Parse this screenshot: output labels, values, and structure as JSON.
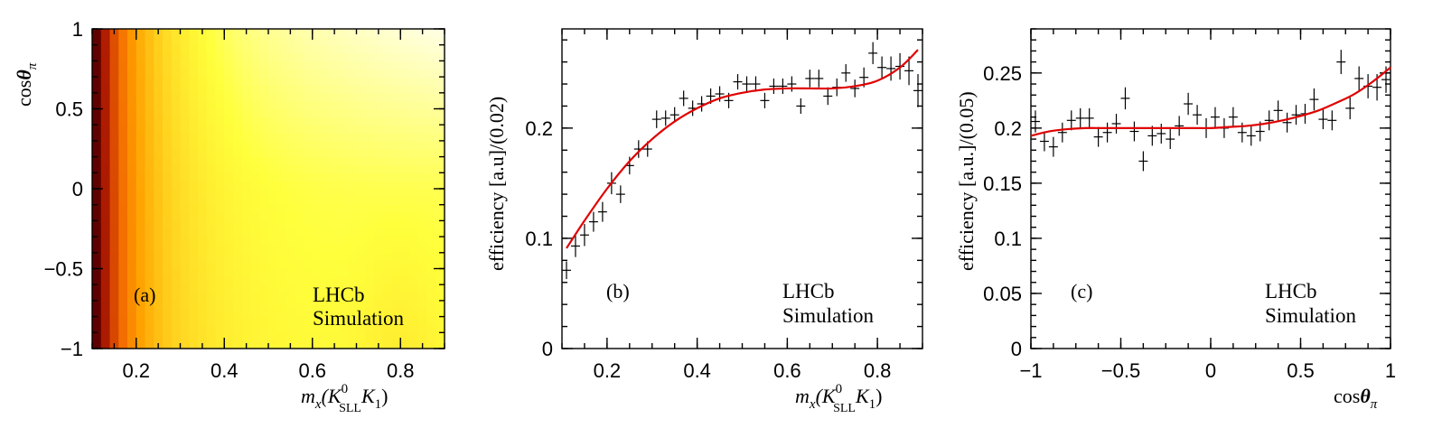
{
  "chart_data": [
    {
      "type": "heatmap",
      "panel": "a",
      "panel_label": "(a)",
      "experiment": "LHCb",
      "sim_label": "Simulation",
      "xlabel_main": "m",
      "xlabel_sub": "x",
      "xlabel_particles": "(K",
      "xlabel_sup": "0",
      "xlabel_sub2": "SLL",
      "xlabel_k": "K",
      "xlabel_k_sub": "1",
      "xlabel_close": ")",
      "ylabel_main": "cos",
      "ylabel_theta": "θ",
      "ylabel_sub": "π",
      "xlim": [
        0.1,
        0.9
      ],
      "ylim": [
        -1,
        1
      ],
      "xticks": [
        0.2,
        0.4,
        0.6,
        0.8
      ],
      "xtick_labels": [
        "0.2",
        "0.4",
        "0.6",
        "0.8"
      ],
      "yticks": [
        -1,
        -0.5,
        0,
        0.5,
        1
      ],
      "ytick_labels": [
        "−1",
        "−0.5",
        "0",
        "0.5",
        "1"
      ],
      "nx": 40,
      "ny": 40,
      "colormap": [
        "#000000",
        "#5a0000",
        "#b41e00",
        "#f06400",
        "#ffa000",
        "#ffd21e",
        "#ffff3c",
        "#ffffe6"
      ]
    },
    {
      "type": "scatter",
      "panel": "b",
      "panel_label": "(b)",
      "experiment": "LHCb",
      "sim_label": "Simulation",
      "ylabel": "efficiency [a.u]/(0.02)",
      "xlabel_main": "m",
      "xlabel_sub": "x",
      "xlabel_particles": "(K",
      "xlabel_sup": "0",
      "xlabel_sub2": "SLL",
      "xlabel_k": "K",
      "xlabel_k_sub": "1",
      "xlabel_close": ")",
      "xlim": [
        0.1,
        0.9
      ],
      "ylim": [
        0,
        0.29
      ],
      "xticks": [
        0.2,
        0.4,
        0.6,
        0.8
      ],
      "xtick_labels": [
        "0.2",
        "0.4",
        "0.6",
        "0.8"
      ],
      "yticks": [
        0,
        0.1,
        0.2
      ],
      "ytick_labels": [
        "0",
        "0.1",
        "0.2"
      ],
      "bin_half_width": 0.01,
      "x": [
        0.11,
        0.13,
        0.15,
        0.17,
        0.19,
        0.21,
        0.23,
        0.25,
        0.27,
        0.29,
        0.31,
        0.33,
        0.35,
        0.37,
        0.39,
        0.41,
        0.43,
        0.45,
        0.47,
        0.49,
        0.51,
        0.53,
        0.55,
        0.57,
        0.59,
        0.61,
        0.63,
        0.65,
        0.67,
        0.69,
        0.71,
        0.73,
        0.75,
        0.77,
        0.79,
        0.81,
        0.83,
        0.85,
        0.87,
        0.89
      ],
      "y": [
        0.071,
        0.093,
        0.103,
        0.115,
        0.124,
        0.15,
        0.14,
        0.166,
        0.181,
        0.181,
        0.208,
        0.209,
        0.212,
        0.227,
        0.218,
        0.222,
        0.229,
        0.231,
        0.225,
        0.242,
        0.24,
        0.24,
        0.225,
        0.238,
        0.238,
        0.24,
        0.22,
        0.245,
        0.245,
        0.229,
        0.237,
        0.25,
        0.236,
        0.246,
        0.268,
        0.255,
        0.254,
        0.256,
        0.252,
        0.234
      ],
      "yerr": [
        0.008,
        0.01,
        0.01,
        0.009,
        0.009,
        0.01,
        0.008,
        0.008,
        0.008,
        0.007,
        0.008,
        0.007,
        0.007,
        0.007,
        0.007,
        0.007,
        0.007,
        0.007,
        0.007,
        0.007,
        0.007,
        0.007,
        0.007,
        0.007,
        0.007,
        0.007,
        0.007,
        0.008,
        0.008,
        0.008,
        0.008,
        0.008,
        0.008,
        0.009,
        0.01,
        0.01,
        0.011,
        0.012,
        0.013,
        0.015
      ],
      "fit": {
        "x": [
          0.11,
          0.15,
          0.2,
          0.25,
          0.3,
          0.35,
          0.4,
          0.45,
          0.5,
          0.55,
          0.6,
          0.65,
          0.7,
          0.75,
          0.8,
          0.85,
          0.89
        ],
        "y": [
          0.091,
          0.116,
          0.145,
          0.17,
          0.19,
          0.206,
          0.218,
          0.227,
          0.232,
          0.235,
          0.236,
          0.236,
          0.236,
          0.238,
          0.243,
          0.255,
          0.271
        ]
      }
    },
    {
      "type": "scatter",
      "panel": "c",
      "panel_label": "(c)",
      "experiment": "LHCb",
      "sim_label": "Simulation",
      "ylabel": "efficiency [a.u.]/(0.05)",
      "xlabel_main": "cos",
      "xlabel_theta": "θ",
      "xlabel_sub": "π",
      "xlim": [
        -1,
        1
      ],
      "ylim": [
        0,
        0.29
      ],
      "xticks": [
        -1,
        -0.5,
        0,
        0.5,
        1
      ],
      "xtick_labels": [
        "−1",
        "−0.5",
        "0",
        "0.5",
        "1"
      ],
      "yticks": [
        0,
        0.05,
        0.1,
        0.15,
        0.2,
        0.25
      ],
      "ytick_labels": [
        "0",
        "0.05",
        "0.1",
        "0.15",
        "0.2",
        "0.25"
      ],
      "bin_half_width": 0.025,
      "x": [
        -0.975,
        -0.925,
        -0.875,
        -0.825,
        -0.775,
        -0.725,
        -0.675,
        -0.625,
        -0.575,
        -0.525,
        -0.475,
        -0.425,
        -0.375,
        -0.325,
        -0.275,
        -0.225,
        -0.175,
        -0.125,
        -0.075,
        -0.025,
        0.025,
        0.075,
        0.125,
        0.175,
        0.225,
        0.275,
        0.325,
        0.375,
        0.425,
        0.475,
        0.525,
        0.575,
        0.625,
        0.675,
        0.725,
        0.775,
        0.825,
        0.875,
        0.925,
        0.975
      ],
      "y": [
        0.206,
        0.188,
        0.183,
        0.196,
        0.207,
        0.209,
        0.209,
        0.192,
        0.196,
        0.204,
        0.227,
        0.197,
        0.17,
        0.193,
        0.195,
        0.19,
        0.202,
        0.222,
        0.212,
        0.2,
        0.21,
        0.2,
        0.21,
        0.196,
        0.193,
        0.197,
        0.207,
        0.216,
        0.205,
        0.212,
        0.213,
        0.226,
        0.208,
        0.207,
        0.26,
        0.218,
        0.245,
        0.238,
        0.237,
        0.244
      ],
      "yerr": [
        0.01,
        0.009,
        0.009,
        0.009,
        0.009,
        0.009,
        0.009,
        0.009,
        0.009,
        0.009,
        0.01,
        0.009,
        0.009,
        0.009,
        0.009,
        0.009,
        0.009,
        0.01,
        0.009,
        0.009,
        0.009,
        0.009,
        0.009,
        0.009,
        0.009,
        0.009,
        0.009,
        0.009,
        0.009,
        0.009,
        0.009,
        0.01,
        0.009,
        0.009,
        0.011,
        0.01,
        0.011,
        0.011,
        0.012,
        0.012
      ],
      "fit": {
        "x": [
          -1,
          -0.9,
          -0.8,
          -0.7,
          -0.6,
          -0.5,
          -0.4,
          -0.3,
          -0.2,
          -0.1,
          0,
          0.1,
          0.2,
          0.3,
          0.4,
          0.5,
          0.6,
          0.7,
          0.8,
          0.9,
          1
        ],
        "y": [
          0.193,
          0.197,
          0.199,
          0.2,
          0.2,
          0.2,
          0.2,
          0.2,
          0.2,
          0.2,
          0.2,
          0.201,
          0.202,
          0.204,
          0.207,
          0.211,
          0.216,
          0.223,
          0.231,
          0.242,
          0.255
        ]
      }
    }
  ]
}
